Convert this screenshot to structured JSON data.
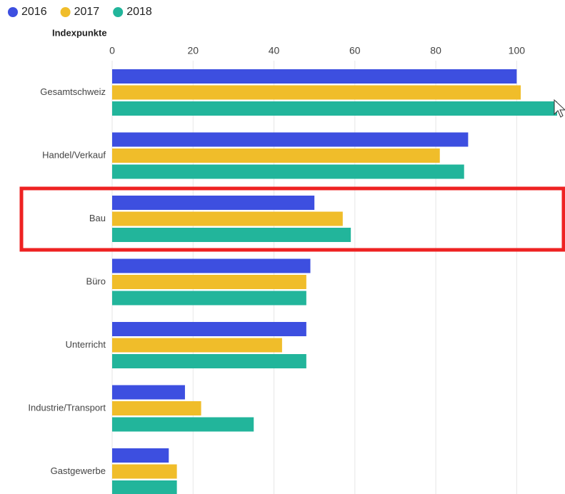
{
  "chart_data": {
    "type": "barh",
    "x_label": "Indexpunkte",
    "categories": [
      "Gesamtschweiz",
      "Handel/Verkauf",
      "Bau",
      "Büro",
      "Unterricht",
      "Industrie/Transport",
      "Gastgewerbe"
    ],
    "series": [
      {
        "name": "2016",
        "color": "#3d4fe0",
        "values": [
          100,
          88,
          50,
          49,
          48,
          18,
          14
        ]
      },
      {
        "name": "2017",
        "color": "#f0bd2a",
        "values": [
          101,
          81,
          57,
          48,
          42,
          22,
          16
        ]
      },
      {
        "name": "2018",
        "color": "#22b59b",
        "values": [
          110,
          87,
          59,
          48,
          48,
          35,
          16
        ]
      }
    ],
    "xlim": [
      0,
      110
    ],
    "xticks": [
      0,
      20,
      40,
      60,
      80,
      100
    ],
    "grid": true,
    "legend": "top-left"
  }
}
